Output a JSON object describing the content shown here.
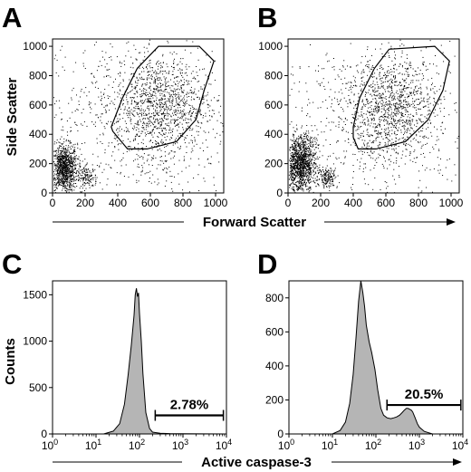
{
  "figure": {
    "panel_letters": [
      "A",
      "B",
      "C",
      "D"
    ],
    "shared_xlabel_top": "Forward Scatter",
    "shared_ylabel_top": "Side Scatter",
    "shared_xlabel_bottom": "Active caspase-3",
    "shared_ylabel_bottom": "Counts"
  },
  "chart_data": [
    {
      "panel": "A",
      "type": "scatter",
      "xlabel": "Forward Scatter",
      "ylabel": "Side Scatter",
      "xlim": [
        0,
        1050
      ],
      "ylim": [
        0,
        1050
      ],
      "xticks": [
        0,
        200,
        400,
        600,
        800,
        1000
      ],
      "yticks": [
        0,
        200,
        400,
        600,
        800,
        1000
      ],
      "gate_polygon": [
        [
          360,
          450
        ],
        [
          430,
          650
        ],
        [
          520,
          850
        ],
        [
          650,
          1000
        ],
        [
          900,
          1000
        ],
        [
          990,
          900
        ],
        [
          930,
          700
        ],
        [
          880,
          500
        ],
        [
          760,
          350
        ],
        [
          580,
          300
        ],
        [
          460,
          300
        ],
        [
          370,
          420
        ]
      ],
      "populations": [
        {
          "x_center": 70,
          "y_center": 170,
          "x_sd": 40,
          "y_sd": 80,
          "n": 1000
        },
        {
          "x_center": 210,
          "y_center": 110,
          "x_sd": 30,
          "y_sd": 35,
          "n": 140
        },
        {
          "x_center": 660,
          "y_center": 600,
          "x_sd": 140,
          "y_sd": 170,
          "n": 1000
        },
        {
          "x_center": 500,
          "y_center": 500,
          "x_sd": 330,
          "y_sd": 320,
          "n": 800
        }
      ]
    },
    {
      "panel": "B",
      "type": "scatter",
      "xlabel": "Forward Scatter",
      "ylabel": "Side Scatter",
      "xlim": [
        0,
        1050
      ],
      "ylim": [
        0,
        1050
      ],
      "xticks": [
        0,
        200,
        400,
        600,
        800,
        1000
      ],
      "yticks": [
        0,
        200,
        400,
        600,
        800,
        1000
      ],
      "gate_polygon": [
        [
          400,
          450
        ],
        [
          440,
          650
        ],
        [
          530,
          850
        ],
        [
          620,
          980
        ],
        [
          900,
          1000
        ],
        [
          990,
          900
        ],
        [
          950,
          700
        ],
        [
          860,
          500
        ],
        [
          720,
          350
        ],
        [
          540,
          300
        ],
        [
          430,
          300
        ],
        [
          400,
          380
        ]
      ],
      "populations": [
        {
          "x_center": 75,
          "y_center": 200,
          "x_sd": 45,
          "y_sd": 95,
          "n": 1300
        },
        {
          "x_center": 240,
          "y_center": 110,
          "x_sd": 30,
          "y_sd": 35,
          "n": 160
        },
        {
          "x_center": 640,
          "y_center": 580,
          "x_sd": 140,
          "y_sd": 170,
          "n": 1000
        },
        {
          "x_center": 500,
          "y_center": 500,
          "x_sd": 330,
          "y_sd": 320,
          "n": 700
        }
      ]
    },
    {
      "panel": "C",
      "type": "area",
      "xlabel": "Active caspase-3",
      "ylabel": "Counts",
      "xscale": "log",
      "xlim": [
        1,
        10000
      ],
      "ylim": [
        0,
        1650
      ],
      "xticks": [
        1,
        10,
        100,
        1000,
        10000
      ],
      "xticklabels": [
        [
          "10",
          "0"
        ],
        [
          "10",
          "1"
        ],
        [
          "10",
          "2"
        ],
        [
          "10",
          "3"
        ],
        [
          "10",
          "4"
        ]
      ],
      "yticks": [
        0,
        500,
        1000,
        1500
      ],
      "x": [
        1,
        15,
        25,
        35,
        45,
        55,
        65,
        75,
        80,
        85,
        90,
        95,
        100,
        110,
        120,
        140,
        170,
        200,
        300,
        500,
        1000,
        3000,
        10000
      ],
      "y": [
        0,
        0,
        30,
        110,
        320,
        640,
        960,
        1280,
        1500,
        1570,
        1480,
        1520,
        1300,
        1000,
        650,
        230,
        60,
        20,
        8,
        4,
        2,
        1,
        0
      ],
      "marker": {
        "x_start": 230,
        "x_end": 8500,
        "y": 200,
        "label": "2.78%"
      }
    },
    {
      "panel": "D",
      "type": "area",
      "xlabel": "Active caspase-3",
      "ylabel": "Counts",
      "xscale": "log",
      "xlim": [
        1,
        10000
      ],
      "ylim": [
        0,
        900
      ],
      "xticks": [
        1,
        10,
        100,
        1000,
        10000
      ],
      "xticklabels": [
        [
          "10",
          "0"
        ],
        [
          "10",
          "1"
        ],
        [
          "10",
          "2"
        ],
        [
          "10",
          "3"
        ],
        [
          "10",
          "4"
        ]
      ],
      "yticks": [
        0,
        200,
        400,
        600,
        800
      ],
      "x": [
        1,
        10,
        15,
        20,
        25,
        30,
        35,
        40,
        45,
        50,
        55,
        60,
        70,
        80,
        95,
        110,
        130,
        150,
        180,
        220,
        260,
        300,
        350,
        400,
        450,
        500,
        550,
        600,
        650,
        700,
        800,
        900,
        1000,
        1300,
        2000,
        10000
      ],
      "y": [
        0,
        0,
        20,
        70,
        180,
        350,
        570,
        780,
        900,
        830,
        750,
        640,
        540,
        480,
        380,
        260,
        150,
        110,
        95,
        90,
        95,
        100,
        110,
        125,
        140,
        150,
        150,
        145,
        140,
        130,
        95,
        60,
        40,
        15,
        0,
        0
      ],
      "marker": {
        "x_start": 180,
        "x_end": 9000,
        "y": 170,
        "label": "20.5%"
      }
    }
  ]
}
